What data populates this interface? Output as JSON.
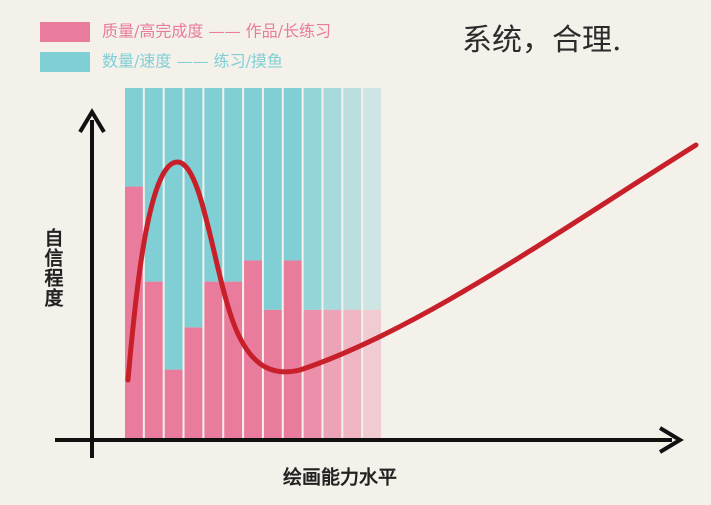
{
  "chart_data": {
    "type": "bar",
    "stacked": true,
    "annotation": "系统，合理.",
    "xlabel": "绘画能力水平",
    "ylabel": "自信程度",
    "categories": [
      null,
      null,
      null,
      null,
      null,
      null,
      null,
      null,
      null,
      null,
      null,
      null,
      null
    ],
    "ylim": [
      0,
      100
    ],
    "series": [
      {
        "name": "质量/高完成度 —— 作品/长练习",
        "color": "#e97b9c",
        "values": [
          72,
          45,
          20,
          32,
          45,
          45,
          51,
          37,
          51,
          37,
          37,
          37,
          37
        ]
      },
      {
        "name": "数量/速度 —— 练习/摸鱼",
        "color": "#80cfd5",
        "values": [
          28,
          55,
          80,
          68,
          55,
          55,
          49,
          63,
          49,
          63,
          63,
          63,
          63
        ]
      }
    ]
  }
}
